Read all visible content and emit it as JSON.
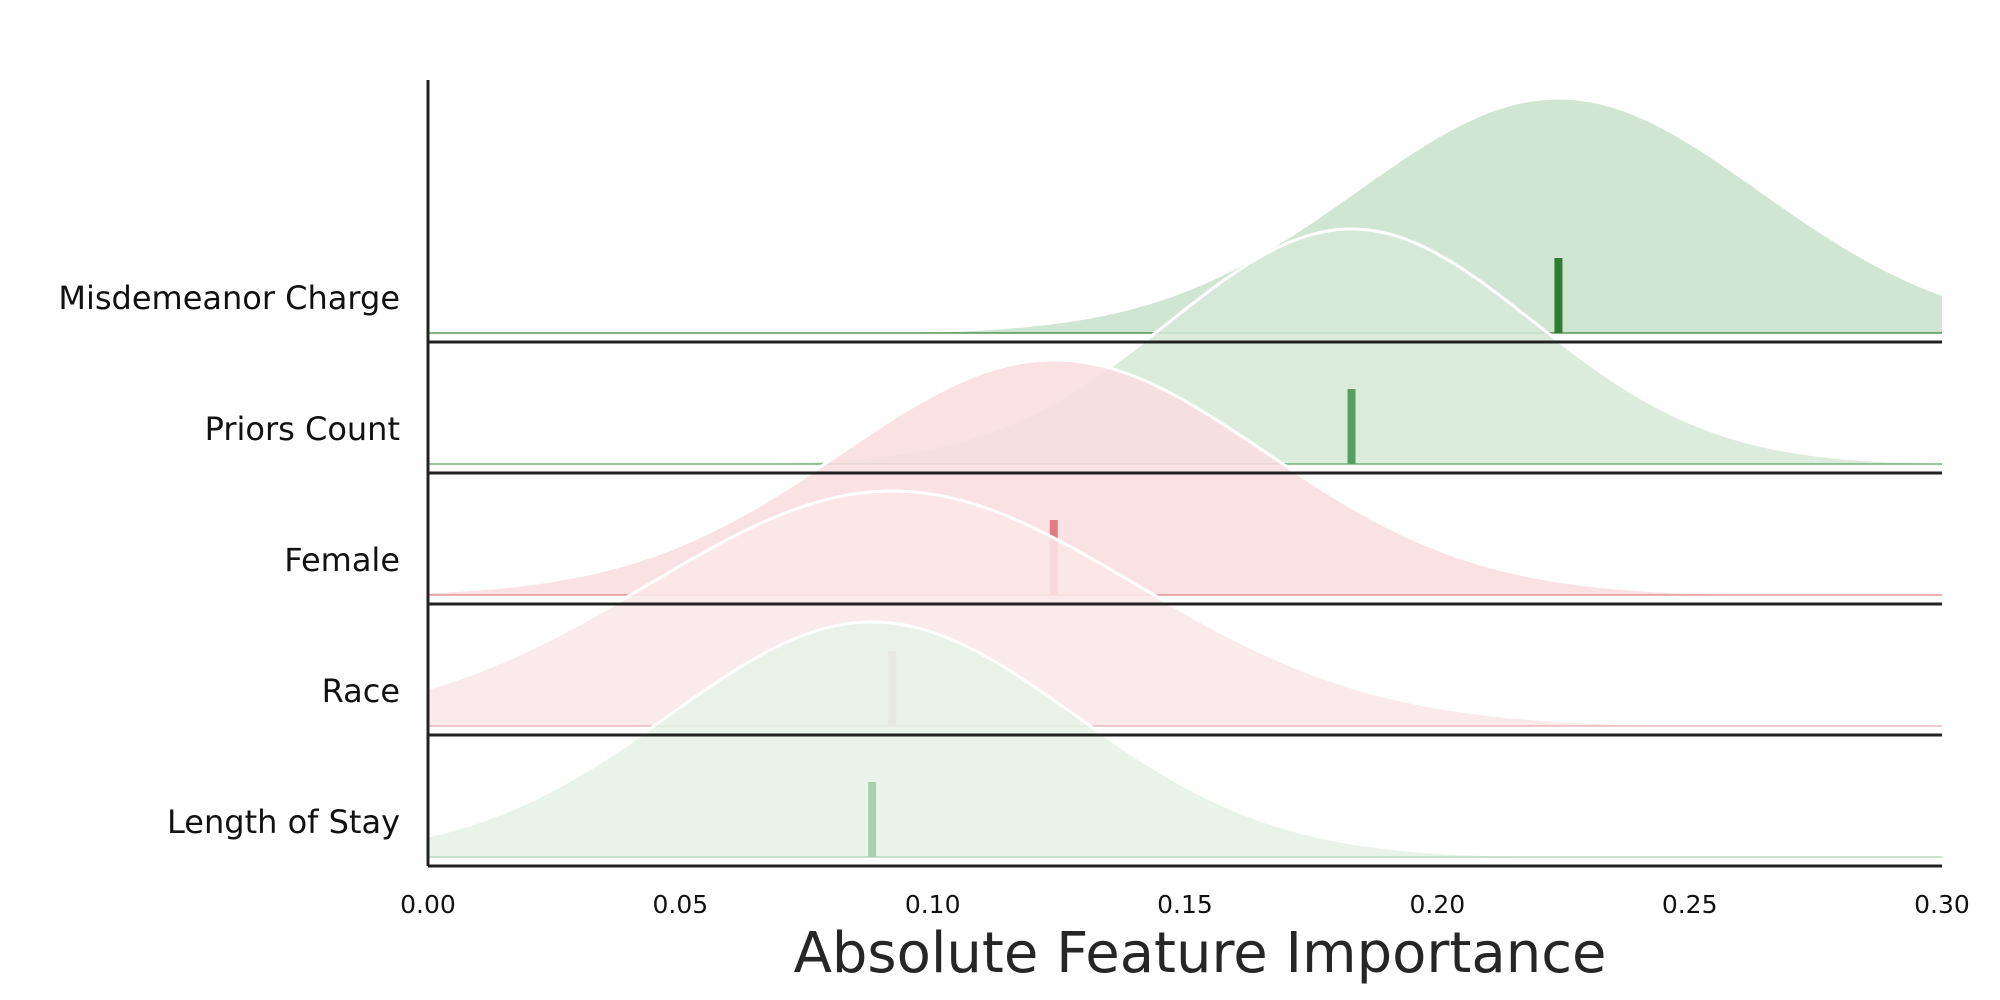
{
  "chart_data": {
    "type": "ridgeline",
    "title": "",
    "xlabel": "Absolute Feature Importance",
    "ylabel": "",
    "xlim": [
      0.0,
      0.3
    ],
    "x_ticks": [
      "0.00",
      "0.05",
      "0.10",
      "0.15",
      "0.20",
      "0.25",
      "0.30"
    ],
    "x_tick_values": [
      0.0,
      0.05,
      0.1,
      0.15,
      0.2,
      0.25,
      0.3
    ],
    "grid": false,
    "legend": "none",
    "categories": [
      "Misdemeanor Charge",
      "Priors Count",
      "Female",
      "Race",
      "Length of Stay"
    ],
    "series": [
      {
        "category": "Misdemeanor Charge",
        "mean": 0.224,
        "sd": 0.04,
        "color": "#2e7d32",
        "fill": "#c9e2cc"
      },
      {
        "category": "Priors Count",
        "mean": 0.183,
        "sd": 0.036,
        "color": "#55a060",
        "fill": "#d6e9d8"
      },
      {
        "category": "Female",
        "mean": 0.124,
        "sd": 0.042,
        "color": "#e07d84",
        "fill": "#f8dde0"
      },
      {
        "category": "Race",
        "mean": 0.092,
        "sd": 0.048,
        "color": "#e3a9ab",
        "fill": "#fae7e8"
      },
      {
        "category": "Length of Stay",
        "mean": 0.088,
        "sd": 0.04,
        "color": "#a9d1ae",
        "fill": "#e7f1e7"
      }
    ]
  }
}
